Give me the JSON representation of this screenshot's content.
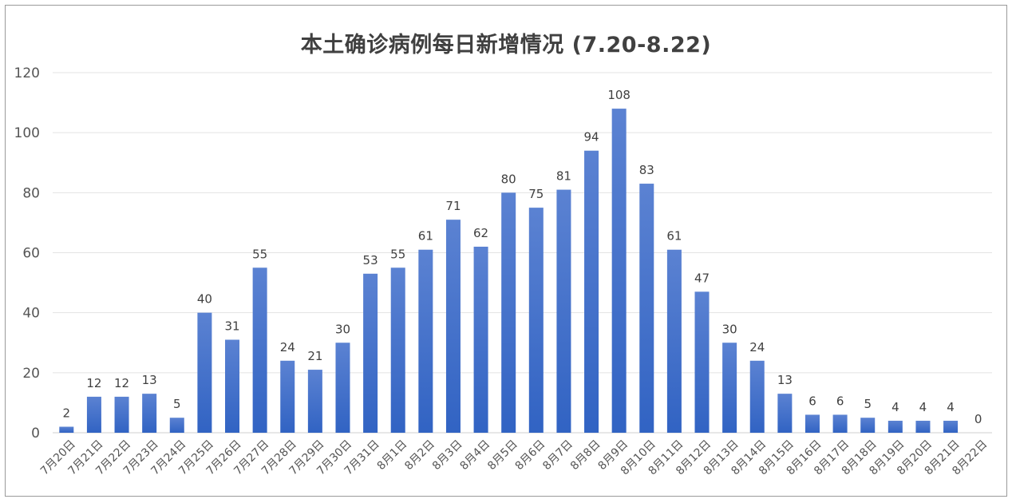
{
  "chart_data": {
    "type": "bar",
    "title": "本土确诊病例每日新增情况 (7.20-8.22)",
    "xlabel": "",
    "ylabel": "",
    "ylim": [
      0,
      120
    ],
    "yticks": [
      0,
      20,
      40,
      60,
      80,
      100,
      120
    ],
    "grid": true,
    "categories": [
      "7月20日",
      "7月21日",
      "7月22日",
      "7月23日",
      "7月24日",
      "7月25日",
      "7月26日",
      "7月27日",
      "7月28日",
      "7月29日",
      "7月30日",
      "7月31日",
      "8月1日",
      "8月2日",
      "8月3日",
      "8月4日",
      "8月5日",
      "8月6日",
      "8月7日",
      "8月8日",
      "8月9日",
      "8月10日",
      "8月11日",
      "8月12日",
      "8月13日",
      "8月14日",
      "8月15日",
      "8月16日",
      "8月17日",
      "8月18日",
      "8月19日",
      "8月20日",
      "8月21日",
      "8月22日"
    ],
    "values": [
      2,
      12,
      12,
      13,
      5,
      40,
      31,
      55,
      24,
      21,
      30,
      53,
      55,
      61,
      71,
      62,
      80,
      75,
      81,
      94,
      108,
      83,
      61,
      47,
      30,
      24,
      13,
      6,
      6,
      5,
      4,
      4,
      4,
      0
    ],
    "colors": {
      "bar_top": "#5b82d2",
      "bar_bottom": "#3163c3",
      "grid": "#e3e3e3",
      "axis": "#cfcfcf"
    }
  }
}
